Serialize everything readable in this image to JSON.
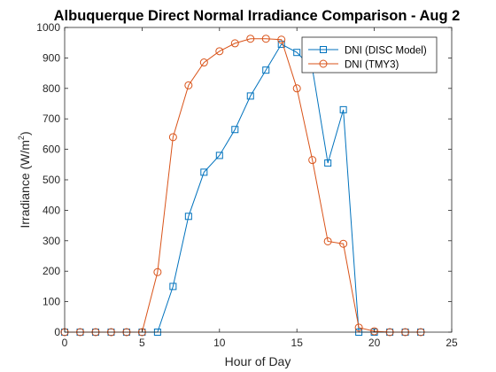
{
  "chart_data": {
    "type": "line",
    "title": "Albuquerque Direct Normal Irradiance Comparison - Aug 2",
    "xlabel": "Hour of Day",
    "ylabel_main": "Irradiance (W/m",
    "ylabel_sup": "2",
    "ylabel_close": ")",
    "xlim": [
      0,
      25
    ],
    "ylim": [
      0,
      1000
    ],
    "xticks": [
      0,
      5,
      10,
      15,
      20,
      25
    ],
    "yticks": [
      0,
      100,
      200,
      300,
      400,
      500,
      600,
      700,
      800,
      900,
      1000
    ],
    "grid": false,
    "legend_position": "top-right",
    "x": [
      0,
      1,
      2,
      3,
      4,
      5,
      6,
      7,
      8,
      9,
      10,
      11,
      12,
      13,
      14,
      15,
      16,
      17,
      18,
      19,
      20,
      21,
      22,
      23
    ],
    "series": [
      {
        "name": "DNI (DISC Model)",
        "color": "#0072BD",
        "marker": "square",
        "values": [
          0,
          0,
          0,
          0,
          0,
          0,
          0,
          150,
          380,
          525,
          580,
          665,
          775,
          860,
          945,
          918,
          865,
          555,
          730,
          0,
          0,
          0,
          0,
          0
        ]
      },
      {
        "name": "DNI (TMY3)",
        "color": "#D95319",
        "marker": "circle",
        "values": [
          0,
          0,
          0,
          0,
          0,
          0,
          197,
          640,
          810,
          885,
          922,
          948,
          963,
          963,
          960,
          800,
          565,
          298,
          290,
          15,
          3,
          0,
          0,
          0
        ]
      }
    ]
  }
}
